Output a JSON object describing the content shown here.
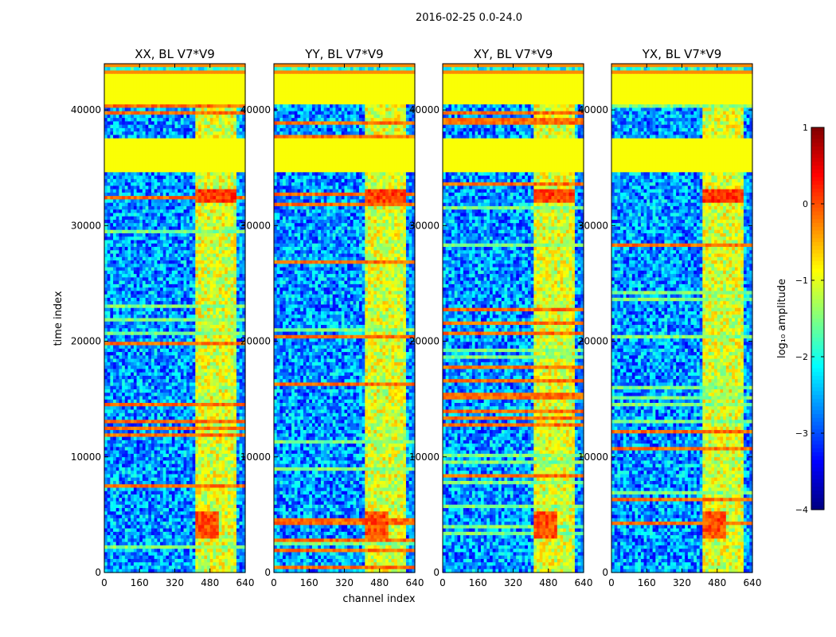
{
  "figure": {
    "suptitle": "2016-02-25 0.0-24.0",
    "xlabel": "channel index",
    "ylabel": "time index"
  },
  "chart_data": {
    "type": "heatmap",
    "colormap": "jet",
    "x_range": [
      0,
      640
    ],
    "y_range": [
      0,
      44000
    ],
    "x_ticks": [
      0,
      160,
      320,
      480,
      640
    ],
    "y_ticks": [
      0,
      10000,
      20000,
      30000,
      40000
    ],
    "panels": [
      {
        "title": "XX, BL V7*V9",
        "pol": "XX"
      },
      {
        "title": "YY, BL V7*V9",
        "pol": "YY"
      },
      {
        "title": "XY, BL V7*V9",
        "pol": "XY"
      },
      {
        "title": "YX, BL V7*V9",
        "pol": "YX"
      }
    ],
    "colorbar": {
      "label": "log₁₀ amplitude",
      "range": [
        -4,
        1
      ],
      "ticks": [
        "1",
        "0",
        "−1",
        "−2",
        "−3",
        "−4"
      ]
    },
    "flagged_time_ranges": [
      [
        34500,
        37500
      ],
      [
        40500,
        43000
      ]
    ],
    "flagged_value": -0.9,
    "rfi_band_channels": [
      410,
      600
    ],
    "bright_blobs": [
      {
        "time": [
          32000,
          33200
        ],
        "channels": [
          420,
          600
        ],
        "value": 0.4
      },
      {
        "time": [
          3000,
          5200
        ],
        "channels": [
          410,
          520
        ],
        "value": 0.3
      }
    ]
  }
}
